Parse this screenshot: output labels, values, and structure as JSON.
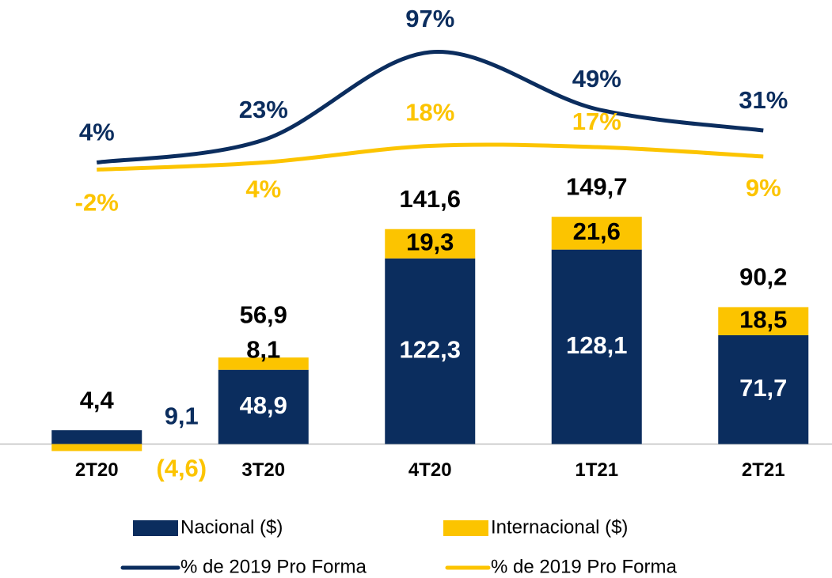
{
  "chart_data": {
    "type": "bar",
    "categories": [
      "2T20",
      "3T20",
      "4T20",
      "1T21",
      "2T21"
    ],
    "series": [
      {
        "name": "Nacional ($)",
        "color": "#0b2d5e",
        "values": [
          9.1,
          48.9,
          122.3,
          128.1,
          71.7
        ],
        "value_labels": [
          "9,1",
          "48,9",
          "122,3",
          "128,1",
          "71,7"
        ]
      },
      {
        "name": "Internacional ($)",
        "color": "#fcc400",
        "values": [
          -4.6,
          8.1,
          19.3,
          21.6,
          18.5
        ],
        "value_labels": [
          "(4,6)",
          "8,1",
          "19,3",
          "21,6",
          "18,5"
        ]
      },
      {
        "name": "% de 2019 Pro Forma",
        "type": "line",
        "axis": "y2",
        "color": "#0b2d5e",
        "values": [
          4,
          23,
          97,
          49,
          31
        ],
        "value_labels": [
          "4%",
          "23%",
          "97%",
          "49%",
          "31%"
        ]
      },
      {
        "name": "% de 2019 Pro Forma",
        "type": "line",
        "axis": "y2",
        "color": "#fcc400",
        "values": [
          -2,
          4,
          18,
          17,
          9
        ],
        "value_labels": [
          "-2%",
          "4%",
          "18%",
          "17%",
          "9%"
        ]
      }
    ],
    "totals": {
      "values": [
        4.4,
        56.9,
        141.6,
        149.7,
        90.2
      ],
      "value_labels": [
        "4,4",
        "56,9",
        "141,6",
        "149,7",
        "90,2"
      ]
    },
    "ylim": [
      -20,
      280
    ],
    "y2lim": [
      -259,
      125
    ]
  }
}
